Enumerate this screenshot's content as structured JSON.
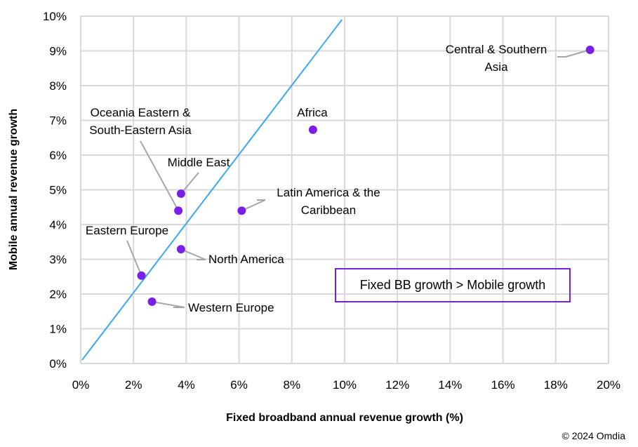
{
  "chart_data": {
    "type": "scatter",
    "xlabel": "Fixed broadband annual revenue growth (%)",
    "ylabel": "Mobile annual revenue growth",
    "xlim": [
      0,
      20
    ],
    "ylim": [
      0,
      10
    ],
    "x_ticks": [
      "0%",
      "2%",
      "4%",
      "6%",
      "8%",
      "10%",
      "12%",
      "14%",
      "16%",
      "18%",
      "20%"
    ],
    "y_ticks": [
      "0%",
      "1%",
      "2%",
      "3%",
      "4%",
      "5%",
      "6%",
      "7%",
      "8%",
      "9%",
      "10%"
    ],
    "grid": true,
    "point_color": "#7a1fe8",
    "line_color": "#3aa8f5",
    "reference_line": {
      "x": [
        0.05,
        9.9
      ],
      "y": [
        0.1,
        9.9
      ]
    },
    "points": [
      {
        "label": "Central & Southern Asia",
        "lines": [
          "Central & Southern",
          "Asia"
        ],
        "x": 19.3,
        "y": 9.03
      },
      {
        "label": "Africa",
        "lines": [
          "Africa"
        ],
        "x": 8.8,
        "y": 6.73
      },
      {
        "label": "Middle East",
        "lines": [
          "Middle East"
        ],
        "x": 3.8,
        "y": 4.89
      },
      {
        "label": "Oceania Eastern & South-Eastern Asia",
        "lines": [
          "Oceania Eastern &",
          "South-Eastern Asia"
        ],
        "x": 3.7,
        "y": 4.4
      },
      {
        "label": "Latin America & the Caribbean",
        "lines": [
          "Latin America & the",
          "Caribbean"
        ],
        "x": 6.1,
        "y": 4.4
      },
      {
        "label": "North America",
        "lines": [
          "North America"
        ],
        "x": 3.8,
        "y": 3.29
      },
      {
        "label": "Eastern Europe",
        "lines": [
          "Eastern Europe"
        ],
        "x": 2.3,
        "y": 2.53
      },
      {
        "label": "Western Europe",
        "lines": [
          "Western Europe"
        ],
        "x": 2.7,
        "y": 1.78
      }
    ],
    "annotation": "Fixed BB growth > Mobile growth"
  },
  "footer": {
    "copyright": "© 2024 Omdia"
  }
}
